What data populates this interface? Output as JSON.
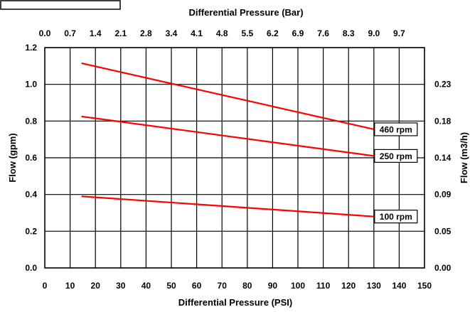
{
  "chart_data": {
    "type": "line",
    "top_xlabel": "Differential Pressure (Bar)",
    "xlabel": "Differential Pressure (PSI)",
    "ylabel": "Flow (gpm)",
    "y2label": "Flow (m3/h)",
    "xlim": [
      0,
      150
    ],
    "ylim": [
      0,
      1.2
    ],
    "x_ticks": [
      "0",
      "10",
      "20",
      "30",
      "40",
      "50",
      "60",
      "70",
      "80",
      "90",
      "100",
      "110",
      "120",
      "130",
      "140",
      "150"
    ],
    "top_ticks": [
      "0.0",
      "0.7",
      "1.4",
      "2.1",
      "2.8",
      "3.4",
      "4.1",
      "4.8",
      "5.5",
      "6.2",
      "6.9",
      "7.6",
      "8.3",
      "9.0",
      "9.7"
    ],
    "y_ticks": [
      "0.0",
      "0.2",
      "0.4",
      "0.6",
      "0.8",
      "1.0",
      "1.2"
    ],
    "y2_ticks": [
      "0.00",
      "0.05",
      "0.09",
      "0.14",
      "0.18",
      "0.23"
    ],
    "grid": true,
    "line_color": "#ff0000",
    "series": [
      {
        "name": "460 rpm",
        "points": [
          [
            14.5,
            1.115
          ],
          [
            130,
            0.755
          ]
        ]
      },
      {
        "name": "250 rpm",
        "points": [
          [
            14.5,
            0.825
          ],
          [
            130,
            0.61
          ]
        ]
      },
      {
        "name": "100 rpm",
        "points": [
          [
            14.5,
            0.39
          ],
          [
            130,
            0.28
          ]
        ]
      }
    ]
  }
}
